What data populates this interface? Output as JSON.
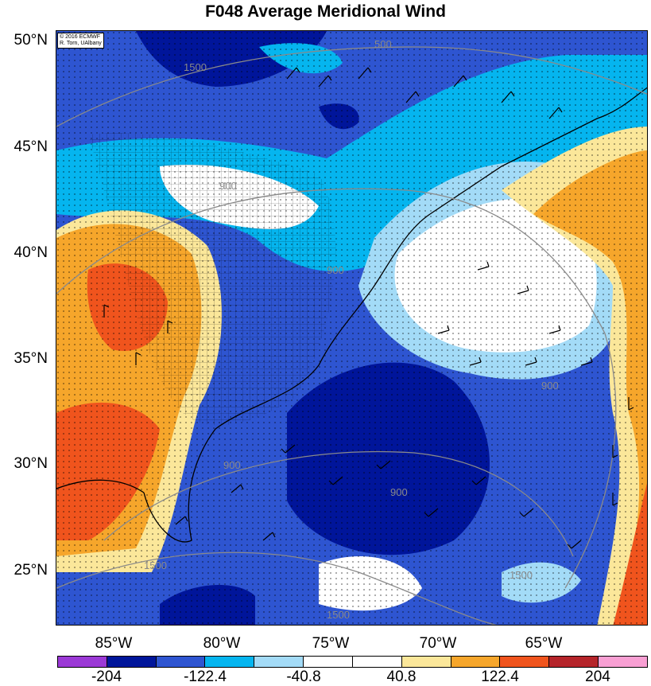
{
  "title": "F048 Average Meridional Wind",
  "credit": {
    "line1": "© 2016 ECMWF",
    "line2": "R. Torn, UAlbany"
  },
  "lat_labels": [
    "50°N",
    "45°N",
    "40°N",
    "35°N",
    "30°N",
    "25°N"
  ],
  "lon_labels": [
    "85°W",
    "80°W",
    "75°W",
    "70°W",
    "65°W"
  ],
  "colorbar": {
    "labels": [
      "-204",
      "-122.4",
      "-40.8",
      "40.8",
      "122.4",
      "204"
    ],
    "colors": [
      "#9b39d6",
      "#00159a",
      "#2e55d1",
      "#05b5ef",
      "#a3dbf7",
      "#ffffff",
      "#ffffff",
      "#fbe79a",
      "#f6a62b",
      "#f0541d",
      "#b5242a",
      "#f89fd3"
    ]
  },
  "contour_labels": [
    "500",
    "900",
    "1500",
    "900",
    "900",
    "900",
    "1500",
    "1500",
    "1500",
    "900"
  ],
  "colors": {
    "deep_blue": "#00159a",
    "mid_blue": "#2e55d1",
    "cyan": "#05b5ef",
    "light_blue": "#a3dbf7",
    "white": "#ffffff",
    "yellow": "#fbe79a",
    "orange": "#f6a62b",
    "red_orange": "#f0541d"
  }
}
